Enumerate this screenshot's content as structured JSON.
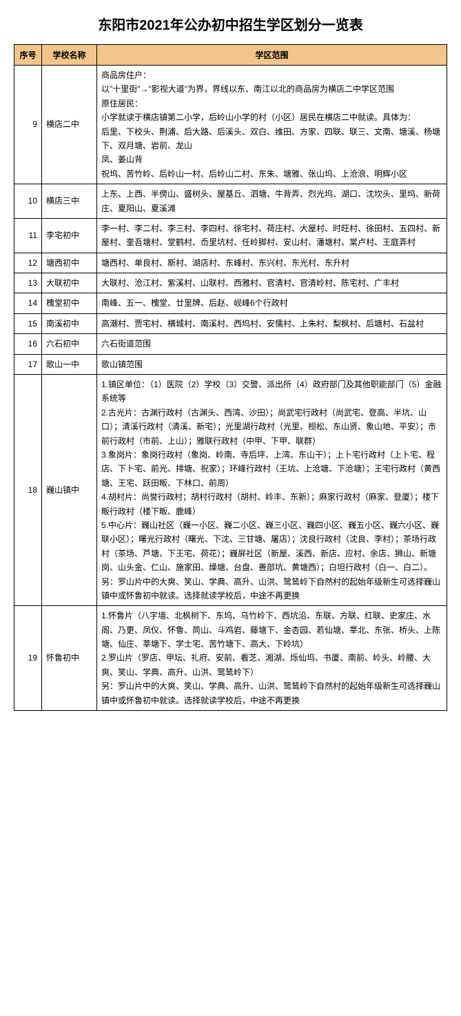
{
  "title": "东阳市2021年公办初中招生学区划分一览表",
  "headers": {
    "seq": "序号",
    "school": "学校名称",
    "range": "学区范围"
  },
  "rows": [
    {
      "seq": "9",
      "school": "横店二中",
      "range": "商品房住户：\n以\"十里街\"→\"影视大道\"为界，界线以东、南江以北的商品房为横店二中学区范围\n原住居民：\n小学就读于横店镇第二小学，后岭山小学的村（小区）居民在横店二中就读。具体为：\n后里、下校头、荆浦、后大路、后溪头、双白、维田、方家、四联、联三、文南、塘溪、杨塘下、双月塘、岩前、龙山\n凤、姜山背\n祝坞、苦竹岭、后岭山一村、后岭山二村、东朱、塘雅、张山坞、上沧浪、明辉小区"
    },
    {
      "seq": "10",
      "school": "横店三中",
      "range": "上东、上西、半傍山、盛树头、屋基丘、泗塘、牛背弄、烈光坞、湖口、沈坎头、里坞、新荷庄、夏阳山、夏溪滩"
    },
    {
      "seq": "11",
      "school": "李宅初中",
      "range": "李一村、李二村、李三村、李四村、徐宅村、荷庄村、大屋村、时旺村、徐田村、五四村、新屋村、奎吾塘村、堂鹤村、岙里坑村、任岭脚村、安山村、潘塘村、棠卢村、王庭弄村"
    },
    {
      "seq": "12",
      "school": "塘西初中",
      "range": "塘西村、单良村、斯村、湖店村、东峰村、东兴村、东光村、东升村"
    },
    {
      "seq": "13",
      "school": "大联初中",
      "range": "大联村、沧江村、紫溪村、山联村、西雅村、官清村、官清岭村、陈宅村、广丰村"
    },
    {
      "seq": "14",
      "school": "槐堂初中",
      "range": "南峰、五一、槐堂、廿里牌、后赵、岘峰6个行政村"
    },
    {
      "seq": "15",
      "school": "南溪初中",
      "range": "高潮村、贾宅村、横城村、南溪村、西坞村、安儒村、上朱村、梨枫村、后塘村、石盆村"
    },
    {
      "seq": "16",
      "school": "六石初中",
      "range": "六石街道范围"
    },
    {
      "seq": "17",
      "school": "歌山一中",
      "range": "歌山镇范围"
    },
    {
      "seq": "18",
      "school": "巍山镇中",
      "range": "1.镇区单位：（1）医院（2）学校（3）交警、派出所（4）政府部门及其他职能部门（5）金融系统等\n2.古光片：古渊行政村（古渊头、西湾、沙田）；尚武宅行政村（尚武宅、登高、半坑、山口）；清溪行政村（清溪、新宅）；光里湖行政村（光里、桓松、东山贤、象山地、平安）；市前行政村（市前、上山）；雅联行政村（中甲、下甲、联群）\n3.象岗片：象岗行政村（象岗、岭南、寺后坪、上湾、东山干）；上卜宅行政村（上卜宅、程店、下卜宅、前光、排塘、祝家）；环峰行政村（王坑、上沧塘、下沧塘）；王宅行政村（黄西塘、王宅、跃田畈、下林口、前周）\n4.胡村片：尚誉行政村；胡村行政村（胡村、岭丰、东新）；麻家行政村（麻家、登厦）；楼下畈行政村（楼下畈、鹿峰）\n5.中心片：巍山社区（巍一小区、巍二小区、巍三小区、巍四小区、巍五小区、巍六小区、巍联小区）；曙光行政村（曙光、下沈、三甘塘、屠店）；沈良行政村（沈良、李村）；茶场行政村（茶场、芦塘、下王宅、荷花）；巍屏社区（新屋、溪西、新店、应村、余店、狮山、新塘岗、山头金、仁山、施家田、燥塘、台盘、善部坑、黄塘西）；白坦行政村（白一、白二）。\n另：罗山片中的大爽、笑山、学典、高升、山洪、鹭鸶岭下自然村的起始年级新生可选择巍山镇中或怀鲁初中就读。选择就读学校后，中途不再更换"
    },
    {
      "seq": "19",
      "school": "怀鲁初中",
      "range": "1.怀鲁片（八字墙、北枫树下、东坞、乌竹岭下、西坑沿、东联、方联、红联、史家庄、水阁、乃更、凤仪、怀鲁、苘山、斗鸡岩、藤塘下、金杏园、若仙塘、莘北、东张、桥头、上陈塘、仙庄、莘塘下、学士宅、苦竹塘下、高大、下岭坑）\n2.罗山片（罗店、甲坛、礼府、安前、看芝、湘湖、烁仙坞、书厦、南前、岭头、岭腰、大爽、笑山、学典、高升、山洪、鹭鸶岭下）\n另：罗山片中的大爽、笑山、学典、高升、山洪、鹭鸶岭下自然村的起始年级新生可选择巍山镇中或怀鲁初中就读。选择就读学校后，中途不再更换"
    }
  ],
  "colors": {
    "header_bg": "#f4c58a",
    "border": "#000000",
    "text": "#000000"
  }
}
